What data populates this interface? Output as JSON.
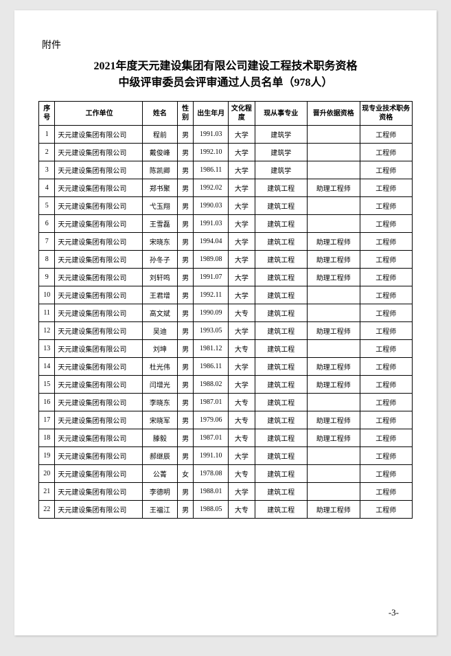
{
  "attachment_label": "附件",
  "title_line1": "2021年度天元建设集团有限公司建设工程技术职务资格",
  "title_line2": "中级评审委员会评审通过人员名单（978人）",
  "headers": {
    "seq": "序号",
    "company": "工作单位",
    "name": "姓名",
    "gender": "性别",
    "birth": "出生年月",
    "edu": "文化程度",
    "major": "现从事专业",
    "basis": "晋升依据资格",
    "current": "现专业技术职务资格"
  },
  "rows": [
    {
      "seq": "1",
      "company": "天元建设集团有限公司",
      "name": "程前",
      "gender": "男",
      "birth": "1991.03",
      "edu": "大学",
      "major": "建筑学",
      "basis": "",
      "current": "工程师"
    },
    {
      "seq": "2",
      "company": "天元建设集团有限公司",
      "name": "戴俊峰",
      "gender": "男",
      "birth": "1992.10",
      "edu": "大学",
      "major": "建筑学",
      "basis": "",
      "current": "工程师"
    },
    {
      "seq": "3",
      "company": "天元建设集团有限公司",
      "name": "陈凯卿",
      "gender": "男",
      "birth": "1986.11",
      "edu": "大学",
      "major": "建筑学",
      "basis": "",
      "current": "工程师"
    },
    {
      "seq": "4",
      "company": "天元建设集团有限公司",
      "name": "郑书聚",
      "gender": "男",
      "birth": "1992.02",
      "edu": "大学",
      "major": "建筑工程",
      "basis": "助理工程师",
      "current": "工程师"
    },
    {
      "seq": "5",
      "company": "天元建设集团有限公司",
      "name": "弋玉翔",
      "gender": "男",
      "birth": "1990.03",
      "edu": "大学",
      "major": "建筑工程",
      "basis": "",
      "current": "工程师"
    },
    {
      "seq": "6",
      "company": "天元建设集团有限公司",
      "name": "王雪磊",
      "gender": "男",
      "birth": "1991.03",
      "edu": "大学",
      "major": "建筑工程",
      "basis": "",
      "current": "工程师"
    },
    {
      "seq": "7",
      "company": "天元建设集团有限公司",
      "name": "宋晓东",
      "gender": "男",
      "birth": "1994.04",
      "edu": "大学",
      "major": "建筑工程",
      "basis": "助理工程师",
      "current": "工程师"
    },
    {
      "seq": "8",
      "company": "天元建设集团有限公司",
      "name": "孙冬子",
      "gender": "男",
      "birth": "1989.08",
      "edu": "大学",
      "major": "建筑工程",
      "basis": "助理工程师",
      "current": "工程师"
    },
    {
      "seq": "9",
      "company": "天元建设集团有限公司",
      "name": "刘轩鸣",
      "gender": "男",
      "birth": "1991.07",
      "edu": "大学",
      "major": "建筑工程",
      "basis": "助理工程师",
      "current": "工程师"
    },
    {
      "seq": "10",
      "company": "天元建设集团有限公司",
      "name": "王君增",
      "gender": "男",
      "birth": "1992.11",
      "edu": "大学",
      "major": "建筑工程",
      "basis": "",
      "current": "工程师"
    },
    {
      "seq": "11",
      "company": "天元建设集团有限公司",
      "name": "高文斌",
      "gender": "男",
      "birth": "1990.09",
      "edu": "大专",
      "major": "建筑工程",
      "basis": "",
      "current": "工程师"
    },
    {
      "seq": "12",
      "company": "天元建设集团有限公司",
      "name": "吴迪",
      "gender": "男",
      "birth": "1993.05",
      "edu": "大学",
      "major": "建筑工程",
      "basis": "助理工程师",
      "current": "工程师"
    },
    {
      "seq": "13",
      "company": "天元建设集团有限公司",
      "name": "刘坤",
      "gender": "男",
      "birth": "1981.12",
      "edu": "大专",
      "major": "建筑工程",
      "basis": "",
      "current": "工程师"
    },
    {
      "seq": "14",
      "company": "天元建设集团有限公司",
      "name": "杜光伟",
      "gender": "男",
      "birth": "1986.11",
      "edu": "大学",
      "major": "建筑工程",
      "basis": "助理工程师",
      "current": "工程师"
    },
    {
      "seq": "15",
      "company": "天元建设集团有限公司",
      "name": "闫增光",
      "gender": "男",
      "birth": "1988.02",
      "edu": "大学",
      "major": "建筑工程",
      "basis": "助理工程师",
      "current": "工程师"
    },
    {
      "seq": "16",
      "company": "天元建设集团有限公司",
      "name": "李晓东",
      "gender": "男",
      "birth": "1987.01",
      "edu": "大专",
      "major": "建筑工程",
      "basis": "",
      "current": "工程师"
    },
    {
      "seq": "17",
      "company": "天元建设集团有限公司",
      "name": "宋晓军",
      "gender": "男",
      "birth": "1979.06",
      "edu": "大专",
      "major": "建筑工程",
      "basis": "助理工程师",
      "current": "工程师"
    },
    {
      "seq": "18",
      "company": "天元建设集团有限公司",
      "name": "滕毅",
      "gender": "男",
      "birth": "1987.01",
      "edu": "大专",
      "major": "建筑工程",
      "basis": "助理工程师",
      "current": "工程师"
    },
    {
      "seq": "19",
      "company": "天元建设集团有限公司",
      "name": "郝继辰",
      "gender": "男",
      "birth": "1991.10",
      "edu": "大学",
      "major": "建筑工程",
      "basis": "",
      "current": "工程师"
    },
    {
      "seq": "20",
      "company": "天元建设集团有限公司",
      "name": "公菁",
      "gender": "女",
      "birth": "1978.08",
      "edu": "大专",
      "major": "建筑工程",
      "basis": "",
      "current": "工程师"
    },
    {
      "seq": "21",
      "company": "天元建设集团有限公司",
      "name": "李德明",
      "gender": "男",
      "birth": "1988.01",
      "edu": "大学",
      "major": "建筑工程",
      "basis": "",
      "current": "工程师"
    },
    {
      "seq": "22",
      "company": "天元建设集团有限公司",
      "name": "王福江",
      "gender": "男",
      "birth": "1988.05",
      "edu": "大专",
      "major": "建筑工程",
      "basis": "助理工程师",
      "current": "工程师"
    }
  ],
  "page_number": "-3-"
}
